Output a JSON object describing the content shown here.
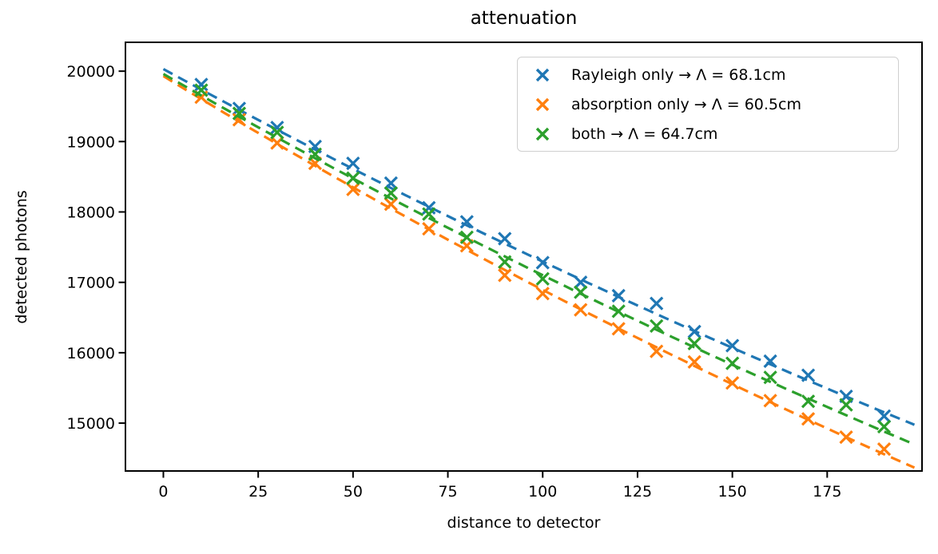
{
  "chart_data": {
    "type": "scatter",
    "title": "attenuation",
    "xlabel": "distance to detector",
    "ylabel": "detected photons",
    "xlim": [
      -10,
      200
    ],
    "ylim": [
      14320,
      20410
    ],
    "xticks": [
      0,
      25,
      50,
      75,
      100,
      125,
      150,
      175
    ],
    "yticks": [
      15000,
      16000,
      17000,
      18000,
      19000,
      20000
    ],
    "grid": false,
    "legend_position": "upper right",
    "marker_style": "x",
    "line_style": "dashed",
    "x": [
      10,
      20,
      30,
      40,
      50,
      60,
      70,
      80,
      90,
      100,
      110,
      120,
      130,
      140,
      150,
      160,
      170,
      180,
      190
    ],
    "series": [
      {
        "name": "Rayleigh only → Λ = 68.1cm",
        "short_name": "Rayleigh only",
        "lambda_cm": 68.1,
        "color": "#1f77b4",
        "values": [
          19810,
          19470,
          19200,
          18930,
          18690,
          18410,
          18060,
          17860,
          17620,
          17280,
          17000,
          16810,
          16700,
          16300,
          16100,
          15880,
          15680,
          15380,
          15100
        ],
        "fit": {
          "n0": 20030,
          "decay_length": 681,
          "x_start": 0,
          "x_end": 199
        }
      },
      {
        "name": "absorption only → Λ = 60.5cm",
        "short_name": "absorption only",
        "lambda_cm": 60.5,
        "color": "#ff7f0e",
        "values": [
          19630,
          19310,
          18980,
          18690,
          18320,
          18110,
          17760,
          17520,
          17100,
          16840,
          16610,
          16340,
          16020,
          15870,
          15570,
          15320,
          15060,
          14800,
          14630
        ],
        "fit": {
          "n0": 19930,
          "decay_length": 605,
          "x_start": 0,
          "x_end": 199
        }
      },
      {
        "name": "both → Λ = 64.7cm",
        "short_name": "both",
        "lambda_cm": 64.7,
        "color": "#2ca02c",
        "values": [
          19730,
          19400,
          19130,
          18820,
          18480,
          18270,
          17970,
          17640,
          17290,
          17050,
          16860,
          16590,
          16380,
          16130,
          15850,
          15650,
          15310,
          15260,
          14950
        ],
        "fit": {
          "n0": 19960,
          "decay_length": 647,
          "x_start": 0,
          "x_end": 199
        }
      }
    ],
    "colors": {
      "spine": "#000000",
      "text": "#000000",
      "legend_border": "#cfcfcf",
      "background": "#ffffff"
    }
  }
}
